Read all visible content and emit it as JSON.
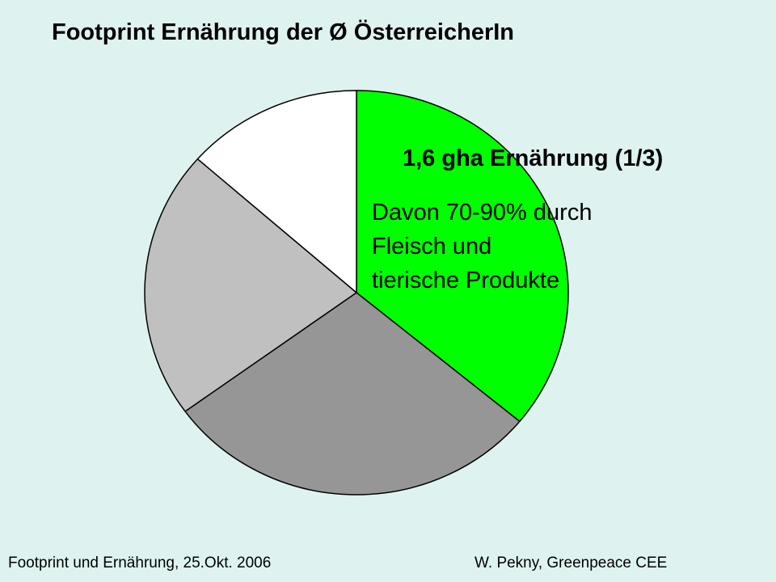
{
  "title": "Footprint Ernährung der Ø ÖsterreicherIn",
  "callout": {
    "headline": "1,6 gha Ernährung (1/3)",
    "body_lines": [
      "Davon 70-90% durch",
      "Fleisch und",
      "tierische Produkte"
    ]
  },
  "footer": {
    "left": "Footprint und Ernährung, 25.Okt. 2006",
    "right": "W. Pekny, Greenpeace CEE"
  },
  "chart_data": {
    "type": "pie",
    "slices": [
      {
        "value": 36,
        "color": "#00ff00"
      },
      {
        "value": 29,
        "color": "#969696"
      },
      {
        "value": 21.5,
        "color": "#c0c0c0"
      },
      {
        "value": 13.5,
        "color": "#ffffff"
      }
    ]
  }
}
